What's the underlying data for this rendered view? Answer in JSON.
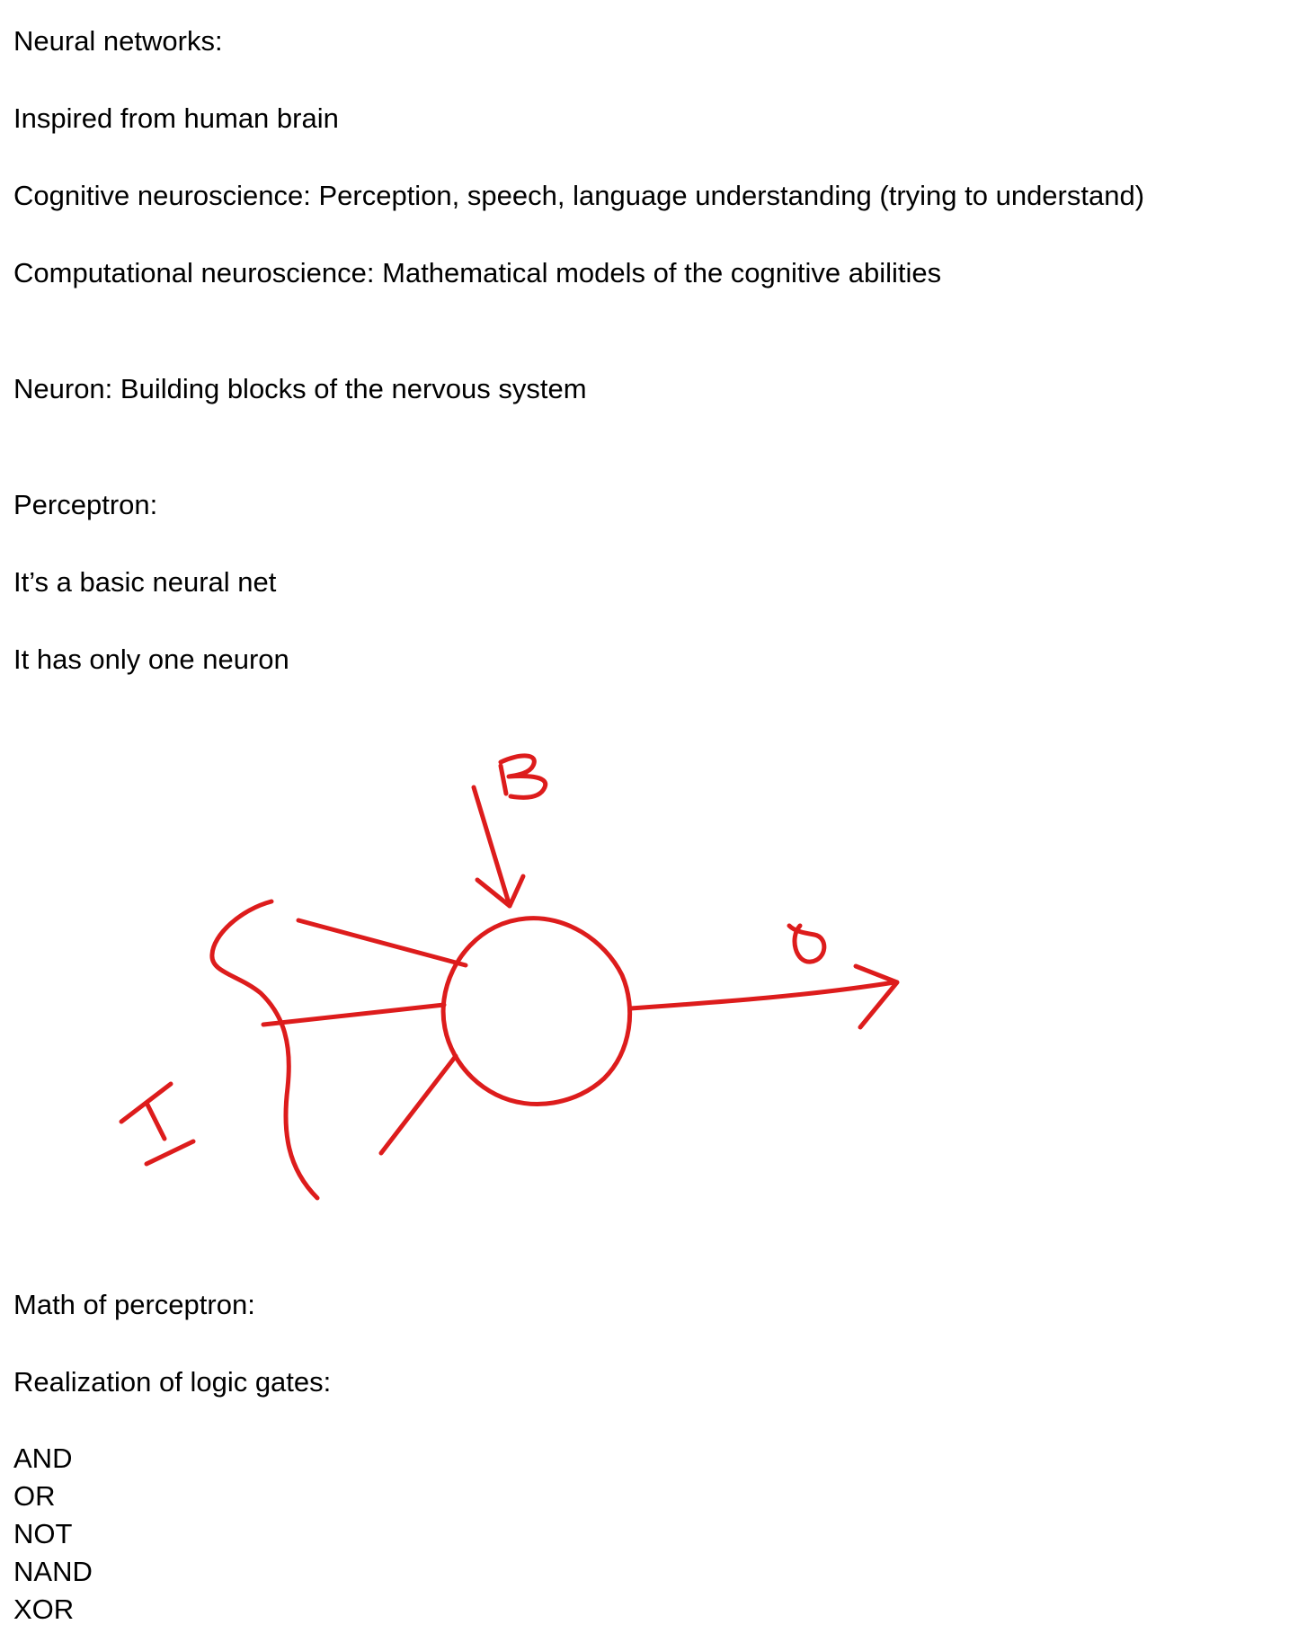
{
  "notes": {
    "neural_networks_heading": "Neural networks:",
    "inspired": "Inspired from human brain",
    "cognitive": "Cognitive neuroscience: Perception, speech, language understanding (trying to understand)",
    "computational": "Computational neuroscience: Mathematical models of the cognitive abilities",
    "neuron": "Neuron: Building blocks of the nervous system",
    "perceptron_heading": "Perceptron:",
    "basic_net": "It’s a basic neural net",
    "one_neuron": "It has only one neuron",
    "math_heading": "Math of perceptron:",
    "logic_heading": "Realization of logic gates:"
  },
  "gates": [
    "AND",
    "OR",
    "NOT",
    "NAND",
    "XOR"
  ],
  "diagram": {
    "stroke_color": "#dd1c1c",
    "labels": {
      "bias": "B",
      "output": "o",
      "input": "I"
    }
  }
}
